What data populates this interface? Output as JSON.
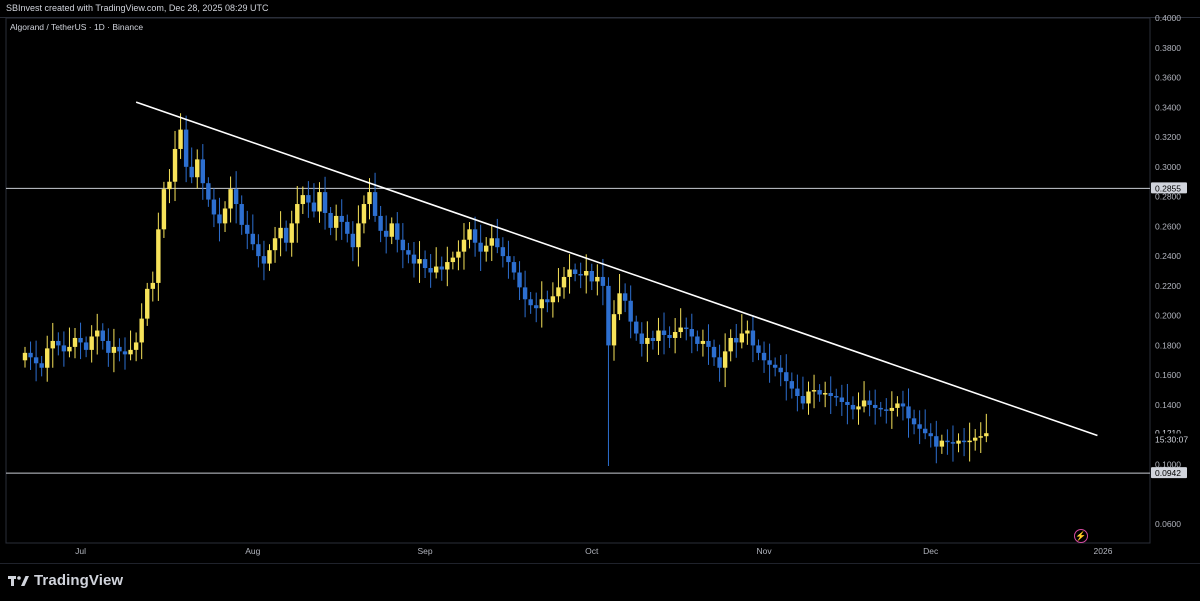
{
  "header": {
    "credit": "SBInvest created with TradingView.com, Dec 28, 2025 08:29 UTC"
  },
  "symbol": {
    "title": "Algorand / TetherUS · 1D · Binance"
  },
  "branding": {
    "logo_text": "TradingView",
    "logo_icon": "tradingview-logo-icon"
  },
  "colors": {
    "background": "#000000",
    "up_candle": "#f7e35a",
    "down_candle": "#2d6fd0",
    "trendline": "#ffffff",
    "grid": "#1c1f26",
    "axis_text": "#b2b5be"
  },
  "chart_data": {
    "type": "candlestick",
    "title": "Algorand / TetherUS · 1D · Binance",
    "xlabel": "",
    "ylabel": "",
    "ylim": [
      0.05,
      0.4
    ],
    "y_ticks": [
      "0.4000",
      "0.3800",
      "0.3600",
      "0.3400",
      "0.3200",
      "0.3000",
      "0.2800",
      "0.2600",
      "0.2400",
      "0.2200",
      "0.2000",
      "0.1800",
      "0.1600",
      "0.1400",
      "0.1000",
      "0.0600"
    ],
    "x_ticks": [
      "Jul",
      "Aug",
      "Sep",
      "Oct",
      "Nov",
      "Dec",
      "2026"
    ],
    "grid": false,
    "date_range": [
      "2025-06-21",
      "2025-12-28"
    ],
    "price_labels": [
      {
        "text": "0.2855",
        "value": 0.2855,
        "style": "horizontal-line"
      },
      {
        "text": "0.0942",
        "value": 0.0942,
        "style": "horizontal-line"
      },
      {
        "text": "0.1210",
        "value": 0.121,
        "style": "last-price"
      },
      {
        "text": "15:30:07",
        "value": 0.1168,
        "style": "countdown"
      }
    ],
    "horizontal_lines": [
      0.2855,
      0.0942
    ],
    "trendline": {
      "start": {
        "date": "2025-07-11",
        "price": 0.3435
      },
      "end": {
        "date": "2025-12-31",
        "price": 0.1195
      }
    },
    "last_price": 0.121,
    "candles_close": [
      0.175,
      0.172,
      0.168,
      0.165,
      0.178,
      0.183,
      0.18,
      0.176,
      0.179,
      0.185,
      0.182,
      0.177,
      0.186,
      0.19,
      0.183,
      0.175,
      0.179,
      0.176,
      0.174,
      0.177,
      0.182,
      0.198,
      0.218,
      0.222,
      0.258,
      0.285,
      0.29,
      0.312,
      0.325,
      0.3,
      0.293,
      0.305,
      0.289,
      0.278,
      0.268,
      0.262,
      0.272,
      0.285,
      0.275,
      0.261,
      0.255,
      0.248,
      0.24,
      0.235,
      0.244,
      0.252,
      0.259,
      0.249,
      0.262,
      0.275,
      0.281,
      0.276,
      0.27,
      0.283,
      0.269,
      0.259,
      0.267,
      0.263,
      0.255,
      0.246,
      0.262,
      0.275,
      0.283,
      0.267,
      0.257,
      0.253,
      0.262,
      0.251,
      0.244,
      0.241,
      0.235,
      0.238,
      0.232,
      0.229,
      0.233,
      0.231,
      0.236,
      0.239,
      0.243,
      0.251,
      0.258,
      0.249,
      0.243,
      0.247,
      0.252,
      0.246,
      0.24,
      0.236,
      0.229,
      0.219,
      0.211,
      0.207,
      0.205,
      0.211,
      0.209,
      0.213,
      0.219,
      0.226,
      0.231,
      0.228,
      0.227,
      0.23,
      0.223,
      0.226,
      0.22,
      0.18,
      0.201,
      0.215,
      0.21,
      0.196,
      0.188,
      0.181,
      0.185,
      0.183,
      0.19,
      0.187,
      0.185,
      0.189,
      0.192,
      0.191,
      0.186,
      0.181,
      0.183,
      0.179,
      0.172,
      0.165,
      0.176,
      0.185,
      0.182,
      0.188,
      0.19,
      0.18,
      0.175,
      0.17,
      0.167,
      0.165,
      0.162,
      0.156,
      0.151,
      0.146,
      0.141,
      0.149,
      0.15,
      0.147,
      0.148,
      0.146,
      0.145,
      0.142,
      0.14,
      0.137,
      0.139,
      0.143,
      0.14,
      0.138,
      0.137,
      0.136,
      0.138,
      0.141,
      0.139,
      0.131,
      0.127,
      0.124,
      0.121,
      0.119,
      0.112,
      0.116,
      0.115,
      0.114,
      0.116,
      0.115,
      0.116,
      0.118,
      0.119,
      0.121
    ]
  }
}
